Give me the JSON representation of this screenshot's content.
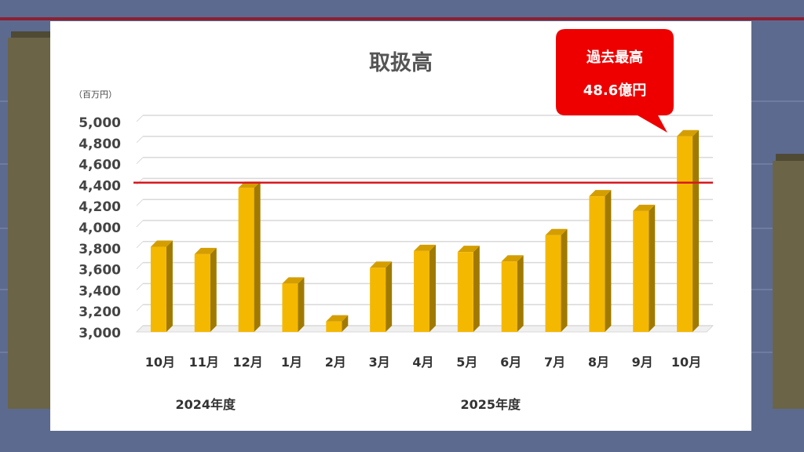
{
  "chart_data": {
    "type": "bar",
    "title": "取扱高",
    "unit_label": "（百万円）",
    "ylim": [
      3000,
      5000
    ],
    "y_ticks": [
      "5,000",
      "4,800",
      "4,600",
      "4,400",
      "4,200",
      "4,000",
      "3,800",
      "3,600",
      "3,400",
      "3,200",
      "3,000"
    ],
    "y_tick_values": [
      5000,
      4800,
      4600,
      4400,
      4200,
      4000,
      3800,
      3600,
      3400,
      3200,
      3000
    ],
    "categories": [
      "10月",
      "11月",
      "12月",
      "1月",
      "2月",
      "3月",
      "4月",
      "5月",
      "6月",
      "7月",
      "8月",
      "9月",
      "10月"
    ],
    "values": [
      3810,
      3740,
      4370,
      3460,
      3100,
      3610,
      3770,
      3760,
      3670,
      3920,
      4290,
      4150,
      4860
    ],
    "groups": [
      {
        "label": "2024年度",
        "from": 0,
        "to": 2
      },
      {
        "label": "2025年度",
        "from": 3,
        "to": 12
      }
    ],
    "reference_line": 4420,
    "grid": true,
    "annotation": {
      "line1": "過去最高",
      "line2": "48.6億円"
    },
    "colors": {
      "bar": "#f5b800",
      "bar_side": "#a07a00",
      "bar_top": "#d49e00",
      "reference": "#d71920",
      "callout": "#ee0000",
      "grid": "#d9d9d9"
    }
  }
}
